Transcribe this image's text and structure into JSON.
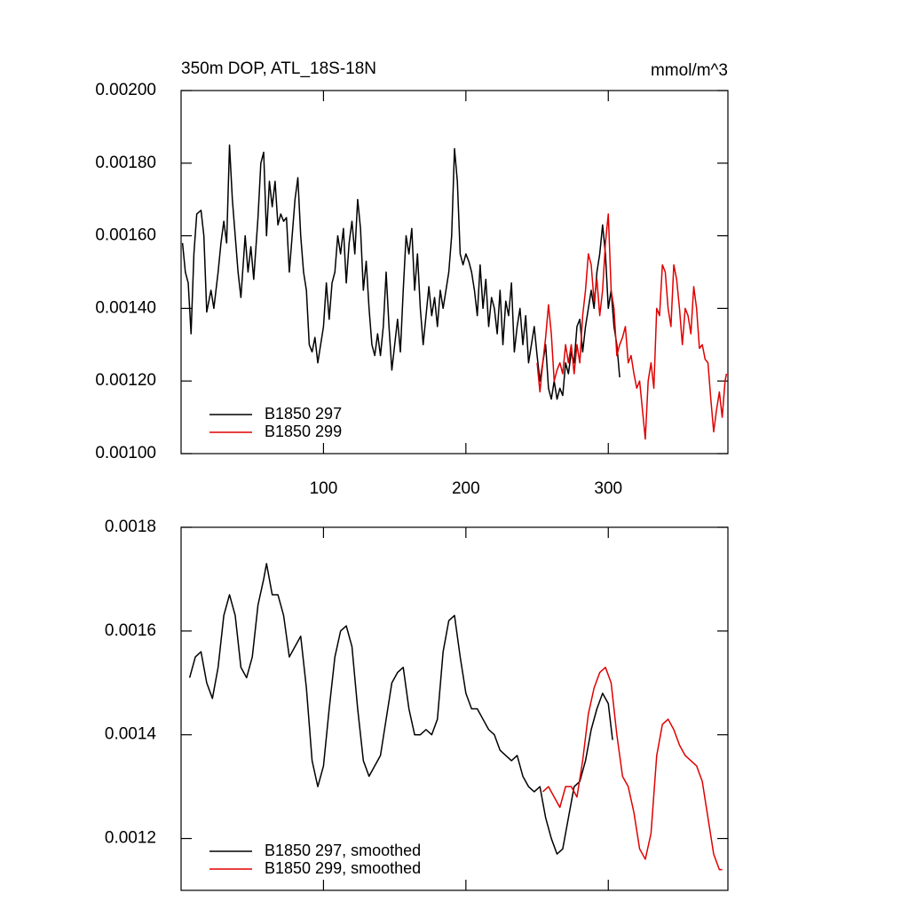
{
  "chart_data": [
    {
      "type": "line",
      "title": "350m DOP, ATL_18S-18N",
      "units": "mmol/m^3",
      "xlim": [
        0,
        384
      ],
      "ylim": [
        0.001,
        0.002
      ],
      "xticks": [
        100,
        200,
        300
      ],
      "xtick_labels": true,
      "yticks": [
        {
          "value": 0.001,
          "label": "0.00100"
        },
        {
          "value": 0.0012,
          "label": "0.00120"
        },
        {
          "value": 0.0014,
          "label": "0.00140"
        },
        {
          "value": 0.0016,
          "label": "0.00160"
        },
        {
          "value": 0.0018,
          "label": "0.00180"
        },
        {
          "value": 0.002,
          "label": "0.00200"
        }
      ],
      "legend": "lower-left",
      "series": [
        {
          "name": "B1850 297",
          "color": "#000000",
          "x": [
            1,
            3,
            5,
            7,
            9,
            11,
            14,
            16,
            18,
            21,
            23,
            26,
            28,
            30,
            32,
            34,
            36,
            38,
            40,
            42,
            45,
            47,
            49,
            51,
            54,
            56,
            58,
            60,
            62,
            64,
            66,
            68,
            70,
            72,
            74,
            76,
            78,
            80,
            82,
            84,
            86,
            88,
            90,
            92,
            94,
            96,
            98,
            100,
            102,
            104,
            106,
            108,
            110,
            112,
            114,
            116,
            118,
            120,
            122,
            124,
            126,
            128,
            130,
            132,
            134,
            136,
            138,
            140,
            142,
            144,
            146,
            148,
            150,
            152,
            154,
            156,
            158,
            160,
            162,
            164,
            166,
            168,
            170,
            172,
            174,
            176,
            178,
            180,
            182,
            184,
            186,
            188,
            190,
            192,
            194,
            196,
            198,
            200,
            202,
            204,
            206,
            208,
            210,
            212,
            214,
            216,
            218,
            220,
            222,
            224,
            226,
            228,
            230,
            232,
            234,
            236,
            238,
            240,
            242,
            244,
            246,
            248,
            250,
            252,
            254,
            256,
            258,
            260,
            262,
            264,
            266,
            268,
            270,
            272,
            274,
            276,
            278,
            280,
            282,
            284,
            286,
            288,
            290,
            292,
            294,
            296,
            298,
            300,
            302,
            304,
            306,
            308
          ],
          "values": [
            0.00158,
            0.0015,
            0.00147,
            0.00133,
            0.00155,
            0.00166,
            0.00167,
            0.0016,
            0.00139,
            0.00145,
            0.0014,
            0.0015,
            0.00158,
            0.00164,
            0.00158,
            0.00185,
            0.0017,
            0.0016,
            0.0015,
            0.00143,
            0.0016,
            0.0015,
            0.00157,
            0.00148,
            0.00165,
            0.0018,
            0.00183,
            0.0016,
            0.00175,
            0.00168,
            0.00175,
            0.00163,
            0.00166,
            0.00164,
            0.00165,
            0.0015,
            0.0016,
            0.0017,
            0.00176,
            0.0016,
            0.0015,
            0.00145,
            0.0013,
            0.00128,
            0.00132,
            0.00125,
            0.0013,
            0.00135,
            0.00147,
            0.00137,
            0.00147,
            0.0015,
            0.0016,
            0.00155,
            0.00162,
            0.00147,
            0.00158,
            0.00164,
            0.00155,
            0.0017,
            0.00162,
            0.00145,
            0.00153,
            0.0014,
            0.0013,
            0.00127,
            0.00133,
            0.00127,
            0.00135,
            0.0015,
            0.00135,
            0.00123,
            0.0013,
            0.00137,
            0.00128,
            0.00145,
            0.0016,
            0.00155,
            0.00162,
            0.00145,
            0.00155,
            0.0014,
            0.0013,
            0.00138,
            0.00146,
            0.00138,
            0.00143,
            0.00135,
            0.00145,
            0.0014,
            0.00145,
            0.0015,
            0.0016,
            0.00184,
            0.00175,
            0.00155,
            0.00152,
            0.00155,
            0.00153,
            0.0015,
            0.00145,
            0.00138,
            0.00152,
            0.0014,
            0.00148,
            0.00135,
            0.00143,
            0.0014,
            0.00133,
            0.00145,
            0.0013,
            0.00142,
            0.00138,
            0.00147,
            0.00128,
            0.00135,
            0.0014,
            0.0013,
            0.00138,
            0.00125,
            0.0013,
            0.00135,
            0.00127,
            0.0012,
            0.00125,
            0.0013,
            0.00118,
            0.00115,
            0.0012,
            0.00115,
            0.00118,
            0.00116,
            0.00125,
            0.00122,
            0.00128,
            0.00125,
            0.00135,
            0.00137,
            0.00128,
            0.00135,
            0.0014,
            0.00145,
            0.0014,
            0.0015,
            0.00155,
            0.00163,
            0.00155,
            0.0014,
            0.00145,
            0.00135,
            0.0013,
            0.00121
          ]
        },
        {
          "name": "B1850 299",
          "color": "#e00000",
          "x": [
            250,
            252,
            254,
            256,
            258,
            260,
            262,
            264,
            266,
            268,
            270,
            272,
            274,
            276,
            278,
            280,
            282,
            284,
            286,
            288,
            290,
            292,
            294,
            296,
            298,
            300,
            302,
            304,
            306,
            308,
            310,
            312,
            314,
            316,
            318,
            320,
            322,
            324,
            326,
            328,
            330,
            332,
            334,
            336,
            338,
            340,
            342,
            344,
            346,
            348,
            350,
            352,
            354,
            356,
            358,
            360,
            362,
            364,
            366,
            368,
            370,
            372,
            374,
            376,
            378,
            380,
            382,
            383
          ],
          "values": [
            0.00125,
            0.00117,
            0.00125,
            0.00132,
            0.00141,
            0.00133,
            0.0012,
            0.00123,
            0.00125,
            0.00122,
            0.0013,
            0.00125,
            0.0013,
            0.00122,
            0.0013,
            0.00125,
            0.00138,
            0.00145,
            0.00155,
            0.00152,
            0.00142,
            0.00148,
            0.00138,
            0.00145,
            0.00158,
            0.00166,
            0.00145,
            0.0014,
            0.00127,
            0.0013,
            0.00132,
            0.00135,
            0.00125,
            0.00127,
            0.00122,
            0.00118,
            0.0012,
            0.00112,
            0.00104,
            0.0012,
            0.00125,
            0.00118,
            0.0014,
            0.00138,
            0.00152,
            0.0015,
            0.0014,
            0.00135,
            0.00152,
            0.00148,
            0.0014,
            0.0013,
            0.0014,
            0.00138,
            0.00133,
            0.00146,
            0.0014,
            0.00129,
            0.0013,
            0.00126,
            0.00125,
            0.00115,
            0.00106,
            0.00112,
            0.00117,
            0.0011,
            0.0012,
            0.00122
          ]
        }
      ]
    },
    {
      "type": "line",
      "xlim": [
        0,
        384
      ],
      "ylim": [
        0.0011,
        0.0018
      ],
      "xticks": [
        100,
        200,
        300
      ],
      "xtick_labels": false,
      "yticks": [
        0.0012,
        0.0014,
        0.0016,
        0.0018
      ],
      "legend": "lower-left",
      "series": [
        {
          "name": "B1850 297, smoothed",
          "color": "#000000",
          "x": [
            6,
            10,
            14,
            18,
            22,
            26,
            30,
            34,
            38,
            42,
            46,
            50,
            54,
            58,
            60,
            64,
            68,
            72,
            76,
            80,
            84,
            88,
            92,
            96,
            100,
            104,
            108,
            112,
            116,
            120,
            124,
            128,
            132,
            136,
            140,
            144,
            148,
            152,
            156,
            160,
            164,
            168,
            172,
            176,
            180,
            184,
            188,
            192,
            196,
            200,
            204,
            208,
            212,
            216,
            220,
            224,
            228,
            232,
            236,
            240,
            244,
            248,
            252,
            256,
            260,
            264,
            268,
            272,
            276,
            280,
            284,
            288,
            292,
            296,
            300,
            303
          ],
          "values": [
            0.00151,
            0.00155,
            0.00156,
            0.0015,
            0.00147,
            0.00153,
            0.00163,
            0.00167,
            0.00163,
            0.00153,
            0.00151,
            0.00155,
            0.00165,
            0.0017,
            0.00173,
            0.00167,
            0.00167,
            0.00163,
            0.00155,
            0.00157,
            0.00159,
            0.00149,
            0.00135,
            0.0013,
            0.00134,
            0.00145,
            0.00155,
            0.0016,
            0.00161,
            0.00157,
            0.00145,
            0.00135,
            0.00132,
            0.00134,
            0.00136,
            0.00143,
            0.0015,
            0.00152,
            0.00153,
            0.00145,
            0.0014,
            0.0014,
            0.00141,
            0.0014,
            0.00143,
            0.00156,
            0.00162,
            0.00163,
            0.00155,
            0.00148,
            0.00145,
            0.00145,
            0.00143,
            0.00141,
            0.0014,
            0.00137,
            0.00136,
            0.00135,
            0.00136,
            0.00132,
            0.0013,
            0.00129,
            0.0013,
            0.00124,
            0.0012,
            0.00117,
            0.00118,
            0.00124,
            0.0013,
            0.00131,
            0.00135,
            0.00141,
            0.00145,
            0.00148,
            0.00146,
            0.00139
          ]
        },
        {
          "name": "B1850 299, smoothed",
          "color": "#e00000",
          "x": [
            254,
            258,
            262,
            266,
            270,
            274,
            278,
            282,
            286,
            290,
            294,
            298,
            302,
            306,
            310,
            314,
            318,
            322,
            326,
            330,
            334,
            338,
            342,
            346,
            350,
            354,
            358,
            362,
            366,
            370,
            374,
            378,
            380
          ],
          "values": [
            0.00129,
            0.0013,
            0.00128,
            0.00126,
            0.0013,
            0.0013,
            0.00128,
            0.00135,
            0.00144,
            0.00149,
            0.00152,
            0.00153,
            0.0015,
            0.0014,
            0.00132,
            0.0013,
            0.00125,
            0.00118,
            0.00116,
            0.00121,
            0.00136,
            0.00142,
            0.00143,
            0.00141,
            0.00138,
            0.00136,
            0.00135,
            0.00134,
            0.00131,
            0.00124,
            0.00117,
            0.00114,
            0.00114
          ]
        }
      ]
    }
  ]
}
